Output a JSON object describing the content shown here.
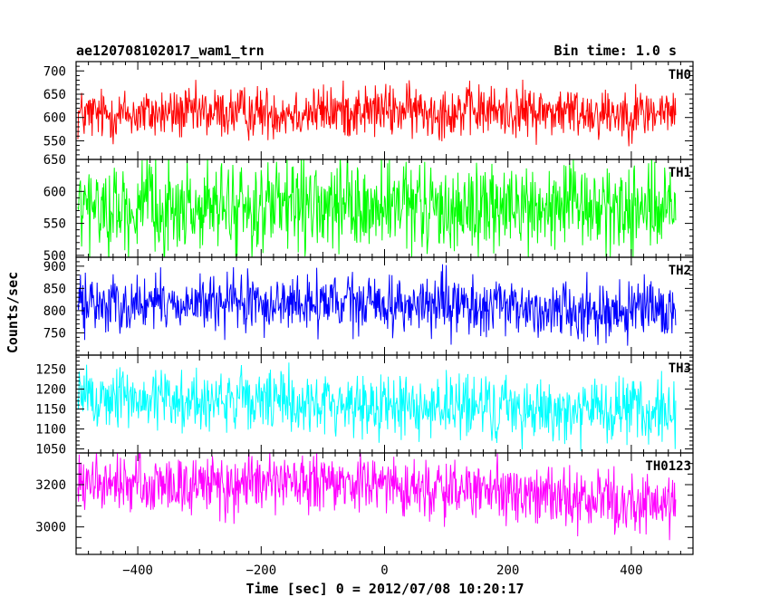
{
  "header": {
    "title": "ae120708102017_wam1_trn",
    "bin_time": "Bin time: 1.0 s"
  },
  "axes": {
    "ylabel": "Counts/sec",
    "xlabel": "Time [sec] 0 = 2012/07/08 10:20:17"
  },
  "chart_data": {
    "type": "line",
    "xlabel": "Time [sec] 0 = 2012/07/08 10:20:17",
    "ylabel": "Counts/sec",
    "xlim": [
      -500,
      500
    ],
    "x_ticks": [
      -400,
      -200,
      0,
      200,
      400
    ],
    "x_range": [
      -497,
      472
    ],
    "bin_time": 1.0,
    "panels": [
      {
        "name": "TH0",
        "color": "#ff0000",
        "ylim": [
          510,
          720
        ],
        "y_ticks": [
          550,
          600,
          650,
          700
        ],
        "mean": [
          605,
          615,
          610
        ],
        "half_range": 42
      },
      {
        "name": "TH1",
        "color": "#00ff00",
        "ylim": [
          497,
          650
        ],
        "y_ticks": [
          500,
          550,
          600,
          650
        ],
        "mean": [
          573,
          573,
          573
        ],
        "half_range": 52
      },
      {
        "name": "TH2",
        "color": "#0000ff",
        "ylim": [
          700,
          920
        ],
        "y_ticks": [
          750,
          800,
          850,
          900
        ],
        "mean": [
          815,
          815,
          795
        ],
        "half_range": 48
      },
      {
        "name": "TH3",
        "color": "#00ffff",
        "ylim": [
          1040,
          1285
        ],
        "y_ticks": [
          1050,
          1100,
          1150,
          1200,
          1250
        ],
        "mean": [
          1180,
          1160,
          1140
        ],
        "half_range": 60
      },
      {
        "name": "TH0123",
        "color": "#ff00ff",
        "ylim": [
          2870,
          3350
        ],
        "y_ticks": [
          3000,
          3200
        ],
        "mean": [
          3200,
          3200,
          3100
        ],
        "half_range": 105
      }
    ]
  }
}
